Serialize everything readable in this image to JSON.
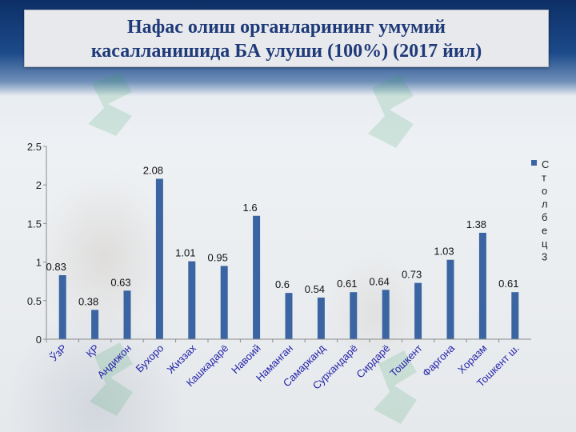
{
  "slide": {
    "title_line1": "Нафас олиш органларининг  умумий",
    "title_line2": "касалланишида БА улуши (100%) (2017 йил)"
  },
  "chart_data": {
    "type": "bar",
    "title": "",
    "xlabel": "",
    "ylabel": "",
    "ylim": [
      0,
      2.5
    ],
    "yticks": [
      0,
      0.5,
      1,
      1.5,
      2,
      2.5
    ],
    "ytick_labels": [
      "0",
      "0.5",
      "1",
      "1.5",
      "2",
      "2.5"
    ],
    "grid": false,
    "legend_position": "right",
    "categories": [
      "ЎзР",
      "ҚР",
      "Андижон",
      "Бухоро",
      "Жиззах",
      "Кашкадарё",
      "Навоий",
      "Наманган",
      "Самарканд",
      "Сурхандарё",
      "Сирдарё",
      "Тошкент",
      "Фаргона",
      "Хоразм",
      "Тошкент ш."
    ],
    "series": [
      {
        "name": "Столбец3",
        "color": "#3a65a2",
        "values": [
          0.83,
          0.38,
          0.63,
          2.08,
          1.01,
          0.95,
          1.6,
          0.6,
          0.54,
          0.61,
          0.64,
          0.73,
          1.03,
          1.38,
          0.61
        ],
        "value_labels": [
          "0.83",
          "0.38",
          "0.63",
          "2.08",
          "1.01",
          "0.95",
          "1.6",
          "0.6",
          "0.54",
          "0.61",
          "0.64",
          "0.73",
          "1.03",
          "1.38",
          "0.61"
        ]
      }
    ],
    "category_label_color": "#1f1fa8"
  }
}
